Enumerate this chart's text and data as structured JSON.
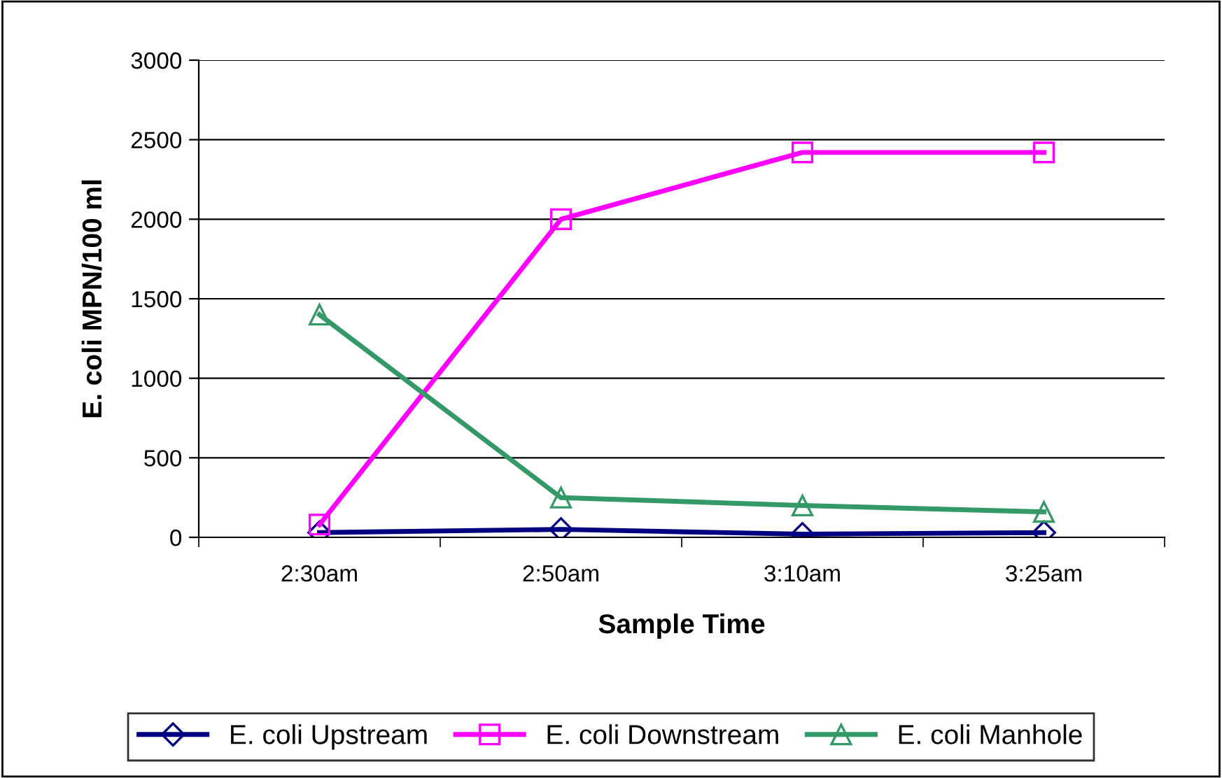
{
  "chart_data": {
    "type": "line",
    "xlabel": "Sample Time",
    "ylabel": "E. coli MPN/100 ml",
    "categories": [
      "2:30am",
      "2:50am",
      "3:10am",
      "3:25am"
    ],
    "series": [
      {
        "name": "E. coli Upstream",
        "color": "#000080",
        "values": [
          30,
          50,
          20,
          30
        ],
        "marker": "diamond"
      },
      {
        "name": "E. coli Downstream",
        "color": "#ff00ff",
        "values": [
          80,
          2000,
          2420,
          2420
        ],
        "marker": "square"
      },
      {
        "name": "E. coli Manhole",
        "color": "#339966",
        "values": [
          1400,
          250,
          200,
          160
        ],
        "marker": "triangle"
      }
    ],
    "ylim": [
      0,
      3000
    ],
    "yticks": [
      0,
      500,
      1000,
      1500,
      2000,
      2500,
      3000
    ],
    "grid": "y",
    "legend": "bottom",
    "line_style": "solid"
  }
}
